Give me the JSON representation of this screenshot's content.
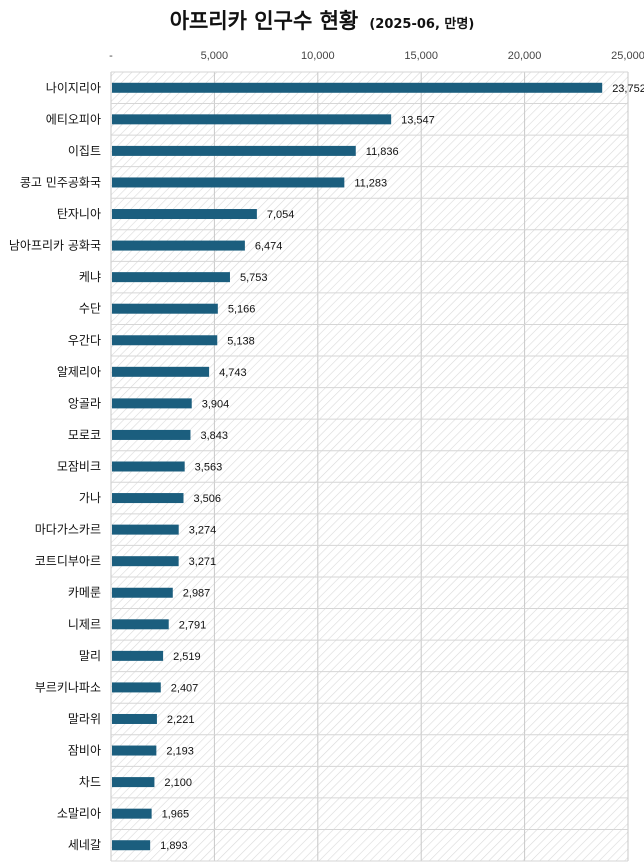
{
  "chart_data": {
    "type": "bar",
    "orientation": "horizontal",
    "title": "아프리카 인구수 현황",
    "subtitle": "(2025-06, 만명)",
    "xlabel": "",
    "ylabel": "",
    "xlim": [
      0,
      25000
    ],
    "x_ticks": [
      "-",
      "5,000",
      "10,000",
      "15,000",
      "20,000",
      "25,000"
    ],
    "x_tick_values": [
      0,
      5000,
      10000,
      15000,
      20000,
      25000
    ],
    "x_axis_position": "top",
    "grid": true,
    "legend": "none",
    "bar_color": "#1b5e7e",
    "plot_background": "diagonal-hatch",
    "categories": [
      "나이지리아",
      "에티오피아",
      "이집트",
      "콩고 민주공화국",
      "탄자니아",
      "남아프리카 공화국",
      "케냐",
      "수단",
      "우간다",
      "알제리아",
      "앙골라",
      "모로코",
      "모잠비크",
      "가나",
      "마다가스카르",
      "코트디부아르",
      "카메룬",
      "니제르",
      "말리",
      "부르키나파소",
      "말라위",
      "잠비아",
      "차드",
      "소말리아",
      "세네갈"
    ],
    "values": [
      23752,
      13547,
      11836,
      11283,
      7054,
      6474,
      5753,
      5166,
      5138,
      4743,
      3904,
      3843,
      3563,
      3506,
      3274,
      3271,
      2987,
      2791,
      2519,
      2407,
      2221,
      2193,
      2100,
      1965,
      1893
    ],
    "data_labels": [
      "23,752",
      "13,547",
      "11,836",
      "11,283",
      "7,054",
      "6,474",
      "5,753",
      "5,166",
      "5,138",
      "4,743",
      "3,904",
      "3,843",
      "3,563",
      "3,506",
      "3,274",
      "3,271",
      "2,987",
      "2,791",
      "2,519",
      "2,407",
      "2,221",
      "2,193",
      "2,100",
      "1,965",
      "1,893"
    ]
  }
}
